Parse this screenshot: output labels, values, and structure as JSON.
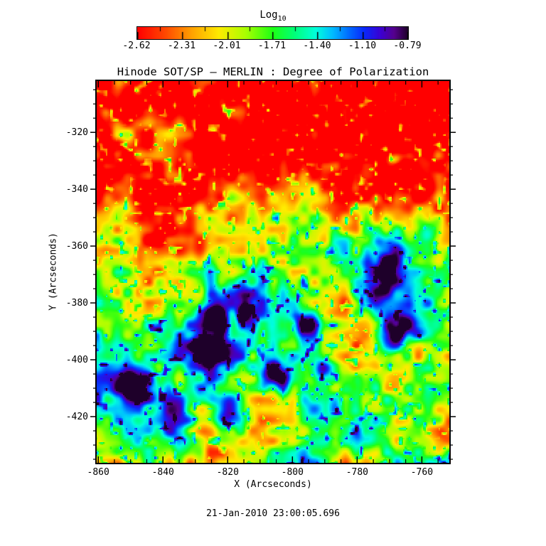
{
  "title": "Hinode SOT/SP — MERLIN : Degree of Polarization",
  "timestamp": "21-Jan-2010 23:00:05.696",
  "colorbar": {
    "title": "Log",
    "title_sub": "10",
    "tick_labels": [
      "-2.62",
      "-2.31",
      "-2.01",
      "-1.71",
      "-1.40",
      "-1.10",
      "-0.79"
    ]
  },
  "chart_data": {
    "type": "heatmap",
    "title": "Hinode SOT/SP — MERLIN : Degree of Polarization",
    "xlabel": "X (Arcseconds)",
    "ylabel": "Y (Arcseconds)",
    "x_ticks": [
      -860,
      -840,
      -820,
      -800,
      -780,
      -760
    ],
    "y_ticks": [
      -320,
      -340,
      -360,
      -380,
      -400,
      -420
    ],
    "x_range": [
      -860.7,
      -751.3
    ],
    "y_range": [
      -436.5,
      -301.7
    ],
    "minor_tick_step": 5,
    "grid": false,
    "colorbar": {
      "label": "Log10",
      "ticks": [
        -2.62,
        -2.31,
        -2.01,
        -1.71,
        -1.4,
        -1.1,
        -0.79
      ],
      "range": [
        -2.62,
        -0.79
      ],
      "orientation": "horizontal-top"
    },
    "background_log10_range": [
      -2.62,
      -1.9
    ],
    "description": "Degree-of-polarization map: red low-polarization quiet background over the top third, mottled green/cyan network over the lower half, with dark blue-purple high-polarization pores; the largest dark structure sits in the upper right.",
    "features": [
      {
        "name": "pore-main",
        "x": -771.5,
        "y": -369.8,
        "log10": -0.85,
        "u": 0.815,
        "v": 0.505,
        "ru": 0.095,
        "rv": 0.11,
        "amp": 0.8
      },
      {
        "name": "pore-main-core",
        "x": -771.5,
        "y": -369.8,
        "log10": -0.8,
        "u": 0.815,
        "v": 0.505,
        "ru": 0.045,
        "rv": 0.055,
        "amp": 0.3
      },
      {
        "name": "pore-main-south",
        "x": -770.4,
        "y": -394.0,
        "log10": -1.1,
        "u": 0.825,
        "v": 0.685,
        "ru": 0.04,
        "rv": 0.05,
        "amp": 0.45
      },
      {
        "name": "blue-patch",
        "x": -826.2,
        "y": -396.1,
        "log10": -0.95,
        "u": 0.315,
        "v": 0.7,
        "ru": 0.048,
        "rv": 0.045,
        "amp": 0.68
      },
      {
        "name": "blue-patch",
        "x": -820.2,
        "y": -418.7,
        "log10": -0.95,
        "u": 0.37,
        "v": 0.868,
        "ru": 0.048,
        "rv": 0.05,
        "amp": 0.68
      },
      {
        "name": "blue-patch",
        "x": -824.6,
        "y": -382.6,
        "log10": -1.1,
        "u": 0.33,
        "v": 0.6,
        "ru": 0.034,
        "rv": 0.04,
        "amp": 0.52
      },
      {
        "name": "blue-patch",
        "x": -806.2,
        "y": -405.5,
        "log10": -1.05,
        "u": 0.498,
        "v": 0.77,
        "ru": 0.04,
        "rv": 0.036,
        "amp": 0.55
      },
      {
        "name": "blue-patch",
        "x": -796.7,
        "y": -387.3,
        "log10": -1.1,
        "u": 0.585,
        "v": 0.635,
        "ru": 0.035,
        "rv": 0.035,
        "amp": 0.52
      },
      {
        "name": "blue-patch",
        "x": -848.7,
        "y": -409.5,
        "log10": -1.0,
        "u": 0.11,
        "v": 0.8,
        "ru": 0.045,
        "rv": 0.04,
        "amp": 0.62
      },
      {
        "name": "blue-patch",
        "x": -790.7,
        "y": -404.1,
        "log10": -1.15,
        "u": 0.64,
        "v": 0.76,
        "ru": 0.03,
        "rv": 0.036,
        "amp": 0.48
      },
      {
        "name": "blue-speckle",
        "x": -768.3,
        "y": -330.0,
        "log10": -1.25,
        "u": 0.845,
        "v": 0.21,
        "ru": 0.02,
        "rv": 0.018,
        "amp": 0.42
      },
      {
        "name": "blue-patch",
        "x": -757.9,
        "y": -354.3,
        "log10": -1.15,
        "u": 0.94,
        "v": 0.39,
        "ru": 0.025,
        "rv": 0.035,
        "amp": 0.5
      },
      {
        "name": "blue-patch",
        "x": -814.2,
        "y": -382.6,
        "log10": -1.2,
        "u": 0.425,
        "v": 0.6,
        "ru": 0.026,
        "rv": 0.032,
        "amp": 0.45
      },
      {
        "name": "blue-patch",
        "x": -821.3,
        "y": -388.0,
        "log10": -1.25,
        "u": 0.36,
        "v": 0.64,
        "ru": 0.022,
        "rv": 0.028,
        "amp": 0.4
      },
      {
        "name": "blue-patch",
        "x": -765.5,
        "y": -388.0,
        "log10": -1.15,
        "u": 0.87,
        "v": 0.64,
        "ru": 0.04,
        "rv": 0.045,
        "amp": 0.5
      }
    ],
    "colormap_stops": [
      [
        0.0,
        [
          255,
          0,
          0
        ]
      ],
      [
        0.1,
        [
          255,
          70,
          0
        ]
      ],
      [
        0.2,
        [
          255,
          160,
          0
        ]
      ],
      [
        0.3,
        [
          255,
          235,
          0
        ]
      ],
      [
        0.4,
        [
          170,
          255,
          0
        ]
      ],
      [
        0.5,
        [
          30,
          255,
          20
        ]
      ],
      [
        0.58,
        [
          0,
          255,
          120
        ]
      ],
      [
        0.66,
        [
          0,
          255,
          220
        ]
      ],
      [
        0.72,
        [
          0,
          190,
          255
        ]
      ],
      [
        0.78,
        [
          0,
          110,
          255
        ]
      ],
      [
        0.84,
        [
          10,
          40,
          250
        ]
      ],
      [
        0.9,
        [
          60,
          0,
          210
        ]
      ],
      [
        0.95,
        [
          85,
          0,
          140
        ]
      ],
      [
        1.0,
        [
          30,
          0,
          42
        ]
      ]
    ],
    "noise": {
      "seed": 11,
      "octaves": [
        [
          5.2,
          5.6,
          0.42
        ],
        [
          13,
          14,
          0.3
        ],
        [
          34,
          36,
          0.28
        ]
      ],
      "speckle_freq": [
        72,
        78
      ],
      "speckle_threshold": 0.72,
      "speckle_gain": 1.5,
      "base": 0.3,
      "gain": 1.35,
      "vbias": {
        "start": -0.34,
        "span": 0.52,
        "v0": 0.16,
        "v1": 0.76
      },
      "band": {
        "amp": 0.09,
        "c0": 0.82,
        "slope": 0.5,
        "width": 0.018
      }
    }
  }
}
